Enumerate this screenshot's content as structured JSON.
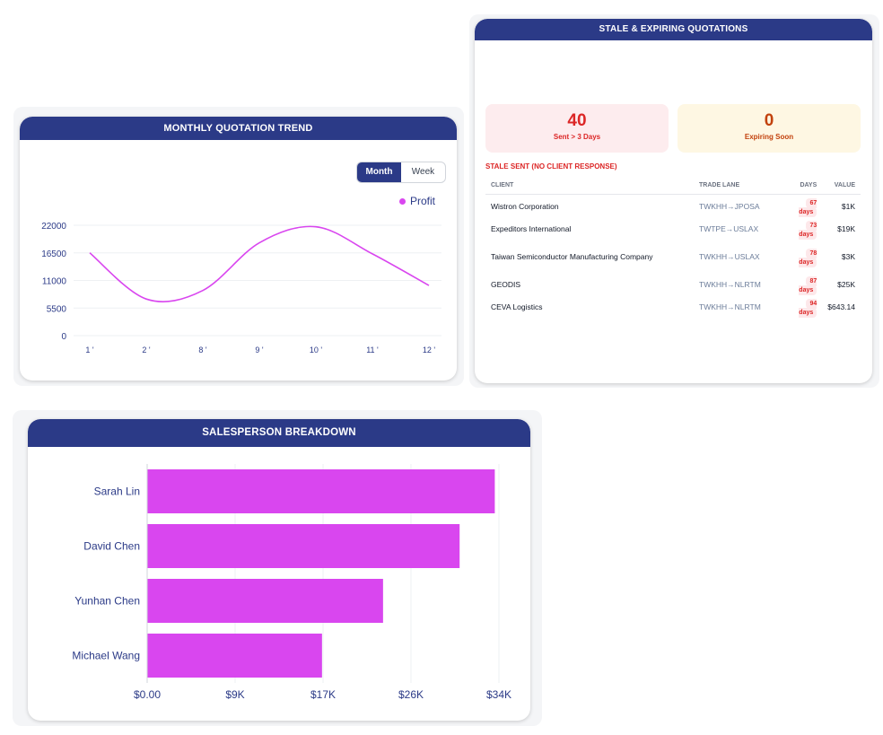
{
  "trend": {
    "title": "MONTHLY QUOTATION TREND",
    "toggle": {
      "month": "Month",
      "week": "Week"
    },
    "legend": "Profit",
    "chart_data": {
      "type": "line",
      "x": [
        "1 '",
        "2 '",
        "8 '",
        "9 '",
        "10 '",
        "11 '",
        "12 '"
      ],
      "series": [
        {
          "name": "Profit",
          "values": [
            16500,
            7300,
            9000,
            18500,
            21700,
            16300,
            10000
          ]
        }
      ],
      "ylim": [
        0,
        22000
      ],
      "yticks": [
        "0",
        "5500",
        "11000",
        "16500",
        "22000"
      ],
      "line_color": "#d946ef"
    }
  },
  "stale": {
    "title": "STALE & EXPIRING QUOTATIONS",
    "sent_count": "40",
    "sent_label": "Sent > 3 Days",
    "expiring_count": "0",
    "expiring_label": "Expiring Soon",
    "section_title": "STALE SENT (NO CLIENT RESPONSE)",
    "columns": [
      "CLIENT",
      "TRADE LANE",
      "DAYS",
      "VALUE"
    ],
    "rows": [
      {
        "client": "Wistron Corporation",
        "lane": "TWKHH→JPOSA",
        "days": "67 days",
        "value": "$1K"
      },
      {
        "client": "Expeditors International",
        "lane": "TWTPE→USLAX",
        "days": "73 days",
        "value": "$19K"
      },
      {
        "client": "Taiwan Semiconductor Manufacturing Company",
        "lane": "TWKHH→USLAX",
        "days": "78 days",
        "value": "$3K"
      },
      {
        "client": "GEODIS",
        "lane": "TWKHH→NLRTM",
        "days": "87 days",
        "value": "$25K"
      },
      {
        "client": "CEVA Logistics",
        "lane": "TWKHH→NLRTM",
        "days": "94 days",
        "value": "$643.14"
      }
    ]
  },
  "sales": {
    "title": "SALESPERSON BREAKDOWN",
    "chart_data": {
      "type": "bar",
      "orientation": "horizontal",
      "categories": [
        "Sarah Lin",
        "David Chen",
        "Yunhan Chen",
        "Michael Wang"
      ],
      "values": [
        33600,
        30200,
        22800,
        16900
      ],
      "xlim": [
        0,
        34000
      ],
      "xticks": [
        0,
        8500,
        17000,
        25500,
        34000
      ],
      "xtick_labels": [
        "$0.00",
        "$9K",
        "$17K",
        "$26K",
        "$34K"
      ],
      "bar_color": "#d946ef"
    }
  }
}
